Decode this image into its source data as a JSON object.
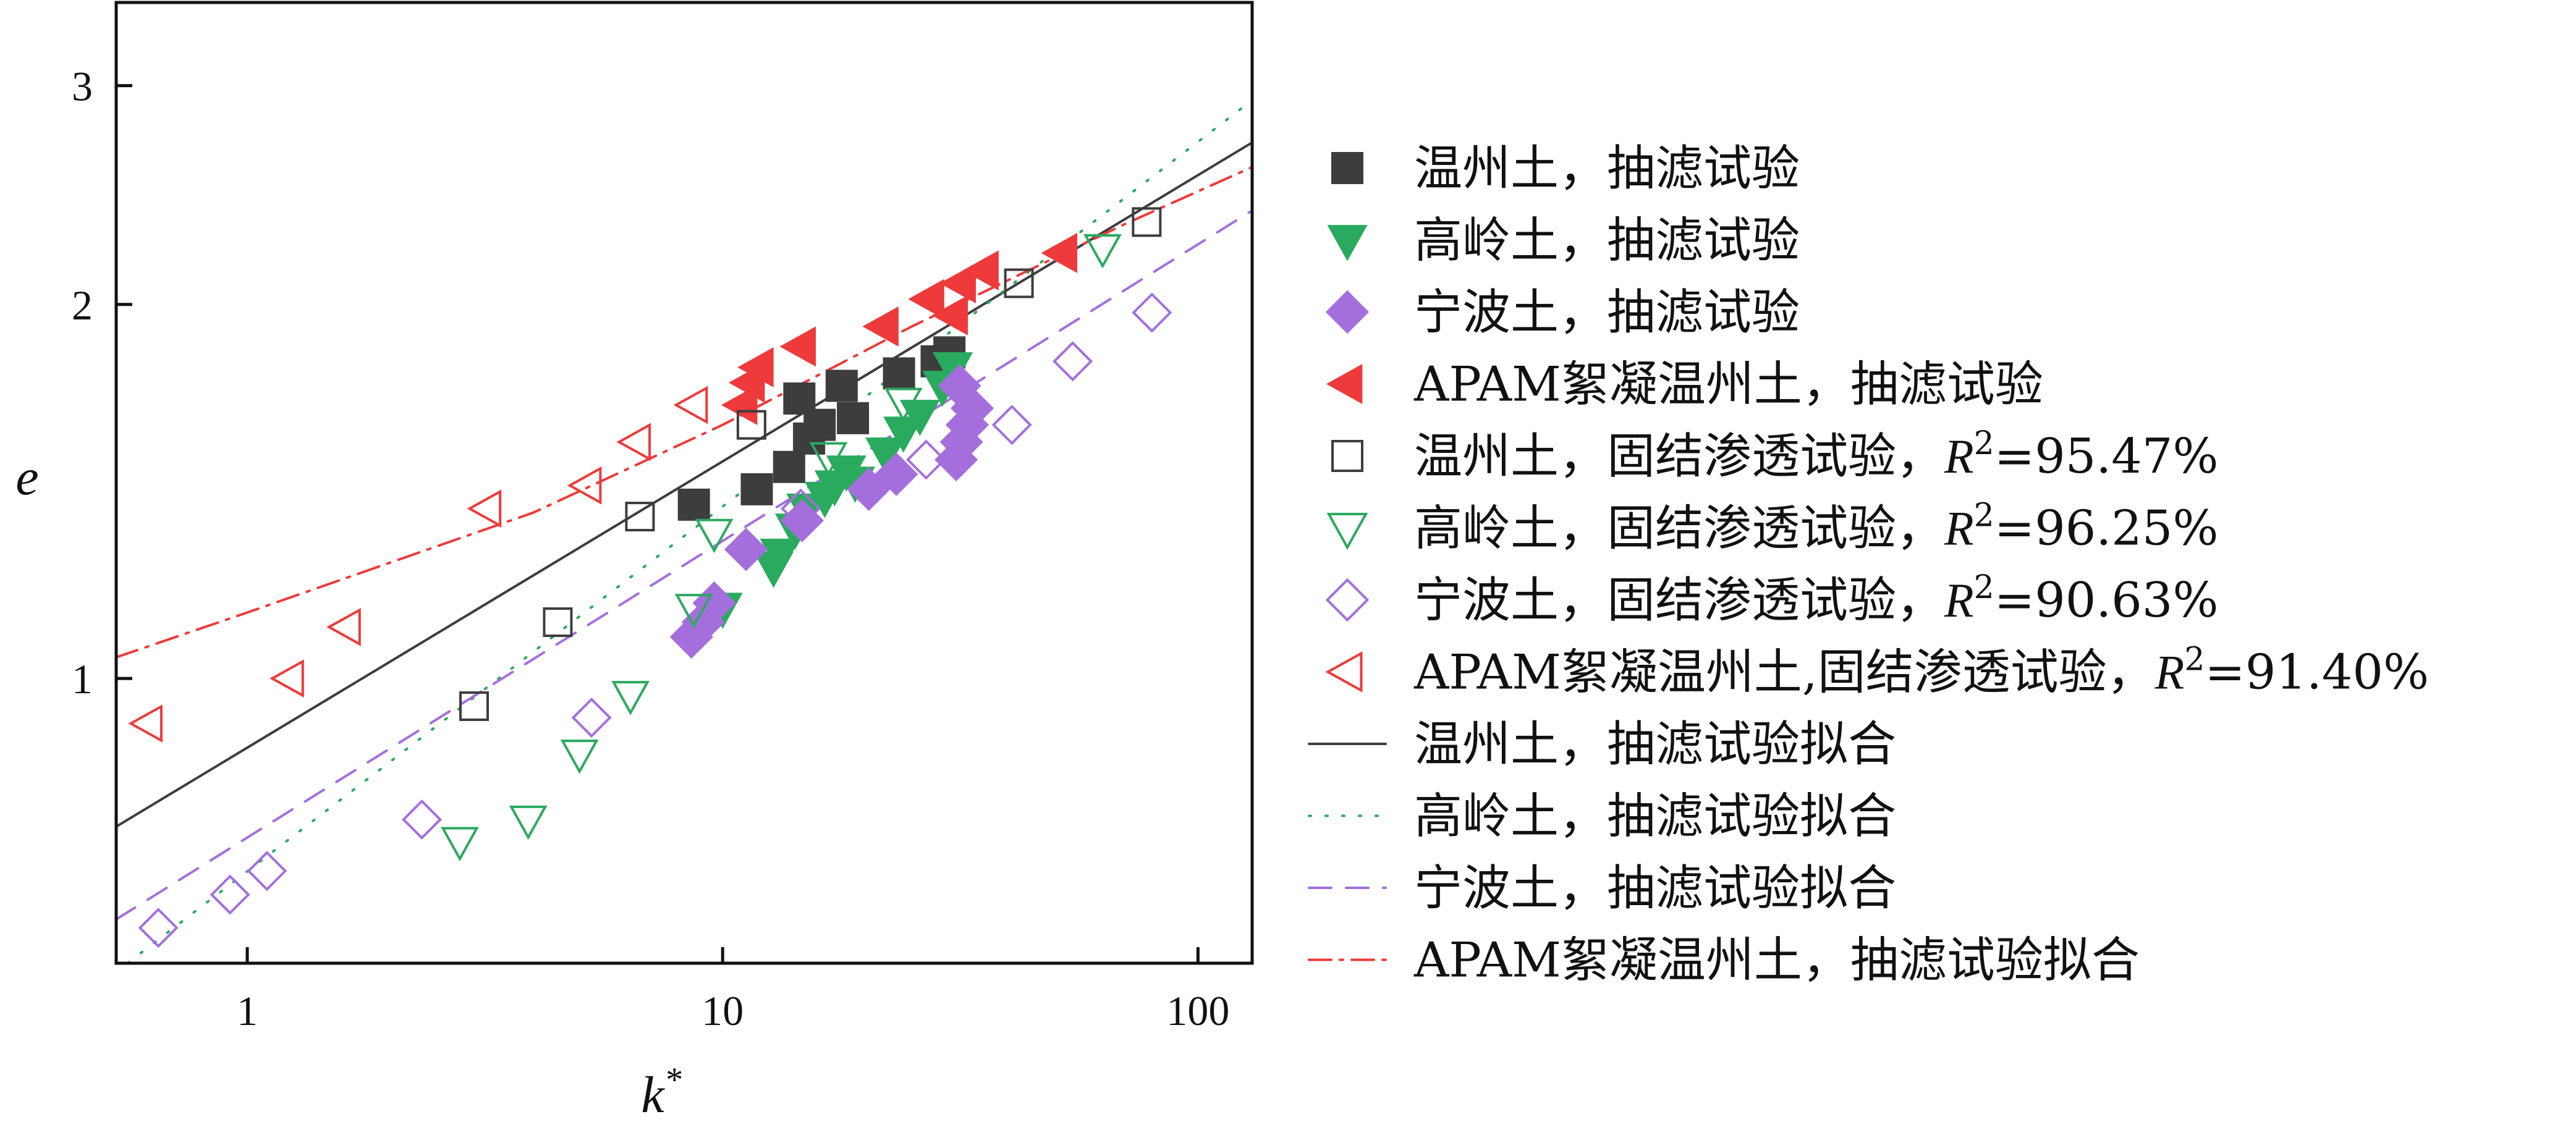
{
  "colors": {
    "wenzhou": "#3d3d3d",
    "gaoling": "#2aaa5e",
    "ningbo": "#a46fdc",
    "apam": "#ee3a3a",
    "axis": "#111111"
  },
  "chart_data": {
    "type": "scatter",
    "xscale": "log",
    "yscale": "log",
    "xlabel": "k",
    "xlabel_sup": "*",
    "ylabel": "e",
    "xlim": [
      0.53,
      130
    ],
    "ylim": [
      0.59,
      3.5
    ],
    "xticks": [
      {
        "v": 1,
        "label": "1"
      },
      {
        "v": 10,
        "label": "10"
      },
      {
        "v": 100,
        "label": "100"
      }
    ],
    "yticks": [
      {
        "v": 1,
        "label": "1"
      },
      {
        "v": 2,
        "label": "2"
      },
      {
        "v": 3,
        "label": "3"
      }
    ],
    "legend_position": "right",
    "series": [
      {
        "key": "wz_filt",
        "name": "温州土，抽滤试验",
        "marker": "square",
        "filled": true,
        "color": "#3d3d3d",
        "points": [
          [
            8.7,
            1.38
          ],
          [
            11.8,
            1.42
          ],
          [
            13.8,
            1.48
          ],
          [
            14.5,
            1.68
          ],
          [
            15.2,
            1.56
          ],
          [
            16,
            1.6
          ],
          [
            17.8,
            1.72
          ],
          [
            18.8,
            1.62
          ],
          [
            23.5,
            1.76
          ],
          [
            28.2,
            1.8
          ],
          [
            30,
            1.83
          ]
        ]
      },
      {
        "key": "gl_filt",
        "name": "高岭土，抽滤试验",
        "marker": "triangle-down",
        "filled": true,
        "color": "#2aaa5e",
        "points": [
          [
            10,
            1.14
          ],
          [
            12.8,
            1.23
          ],
          [
            13.2,
            1.26
          ],
          [
            14.2,
            1.32
          ],
          [
            15,
            1.37
          ],
          [
            16.4,
            1.4
          ],
          [
            17.2,
            1.43
          ],
          [
            18.2,
            1.47
          ],
          [
            19,
            1.44
          ],
          [
            22,
            1.52
          ],
          [
            24,
            1.58
          ],
          [
            26,
            1.63
          ],
          [
            29,
            1.72
          ],
          [
            30.5,
            1.78
          ]
        ]
      },
      {
        "key": "nb_filt",
        "name": "宁波土，抽滤试验",
        "marker": "diamond",
        "filled": true,
        "color": "#a46fdc",
        "points": [
          [
            8.6,
            1.08
          ],
          [
            9.1,
            1.11
          ],
          [
            9.6,
            1.15
          ],
          [
            11.2,
            1.27
          ],
          [
            14.7,
            1.34
          ],
          [
            20.3,
            1.42
          ],
          [
            23.2,
            1.46
          ],
          [
            31,
            1.5
          ],
          [
            31.8,
            1.55
          ],
          [
            32.7,
            1.6
          ],
          [
            33.5,
            1.65
          ],
          [
            31.5,
            1.72
          ]
        ]
      },
      {
        "key": "ap_filt",
        "name": "APAM絮凝温州土，抽滤试验",
        "marker": "triangle-left",
        "filled": true,
        "color": "#ee3a3a",
        "points": [
          [
            11,
            1.66
          ],
          [
            11.4,
            1.73
          ],
          [
            11.9,
            1.78
          ],
          [
            14.6,
            1.85
          ],
          [
            21.8,
            1.92
          ],
          [
            27.2,
            2.02
          ],
          [
            30.5,
            1.96
          ],
          [
            31.7,
            2.08
          ],
          [
            35.4,
            2.13
          ],
          [
            51.8,
            2.2
          ]
        ]
      },
      {
        "key": "wz_cons",
        "name": "温州土，固结渗透试验，",
        "r2": "95.47%",
        "marker": "square",
        "filled": false,
        "color": "#3d3d3d",
        "points": [
          [
            3,
            0.95
          ],
          [
            4.5,
            1.11
          ],
          [
            6.7,
            1.35
          ],
          [
            11.5,
            1.6
          ],
          [
            42,
            2.08
          ],
          [
            78,
            2.33
          ]
        ]
      },
      {
        "key": "gl_cons",
        "name": "高岭土，固结渗透试验，",
        "r2": "96.25%",
        "marker": "triangle-down",
        "filled": false,
        "color": "#2aaa5e",
        "points": [
          [
            2.8,
            0.74
          ],
          [
            3.9,
            0.77
          ],
          [
            5,
            0.87
          ],
          [
            6.4,
            0.97
          ],
          [
            8.7,
            1.14
          ],
          [
            9.6,
            1.31
          ],
          [
            16.7,
            1.51
          ],
          [
            24,
            1.67
          ],
          [
            63,
            2.22
          ]
        ]
      },
      {
        "key": "nb_cons",
        "name": "宁波土，固结渗透试验，",
        "r2": "90.63%",
        "marker": "diamond",
        "filled": false,
        "color": "#a46fdc",
        "points": [
          [
            0.65,
            0.63
          ],
          [
            0.92,
            0.67
          ],
          [
            1.1,
            0.7
          ],
          [
            2.33,
            0.77
          ],
          [
            5.3,
            0.93
          ],
          [
            14.6,
            1.37
          ],
          [
            26.8,
            1.5
          ],
          [
            40.6,
            1.6
          ],
          [
            54.5,
            1.8
          ],
          [
            80,
            1.97
          ]
        ]
      },
      {
        "key": "ap_cons",
        "name": "APAM絮凝温州土,固结渗透试验，",
        "r2": "91.40%",
        "marker": "triangle-left",
        "filled": false,
        "color": "#ee3a3a",
        "points": [
          [
            0.62,
            0.92
          ],
          [
            1.23,
            1.0
          ],
          [
            1.62,
            1.1
          ],
          [
            3.2,
            1.37
          ],
          [
            5.2,
            1.43
          ],
          [
            6.6,
            1.55
          ],
          [
            8.7,
            1.66
          ]
        ]
      }
    ],
    "fits": [
      {
        "key": "wz_fit",
        "name": "温州土，抽滤试验拟合",
        "style": "solid",
        "color": "#3d3d3d",
        "x": [
          0.53,
          130
        ],
        "y": [
          0.76,
          2.7
        ]
      },
      {
        "key": "gl_fit",
        "name": "高岭土，抽滤试验拟合",
        "style": "dotted",
        "color": "#2aaa5e",
        "x": [
          0.56,
          130
        ],
        "y": [
          0.59,
          2.92
        ]
      },
      {
        "key": "nb_fit",
        "name": "宁波土，抽滤试验拟合",
        "style": "dashed",
        "color": "#a46fdc",
        "x": [
          0.53,
          130
        ],
        "y": [
          0.64,
          2.38
        ]
      },
      {
        "key": "ap_fit",
        "name": "APAM絮凝温州土，抽滤试验拟合",
        "style": "dashdot",
        "color": "#ee3a3a",
        "x": [
          0.53,
          1,
          4,
          10,
          25,
          70,
          130
        ],
        "y": [
          1.04,
          1.13,
          1.36,
          1.6,
          1.92,
          2.32,
          2.58
        ]
      }
    ],
    "r2_label": "R",
    "r2_sup": "2",
    "r2_eq": "="
  }
}
